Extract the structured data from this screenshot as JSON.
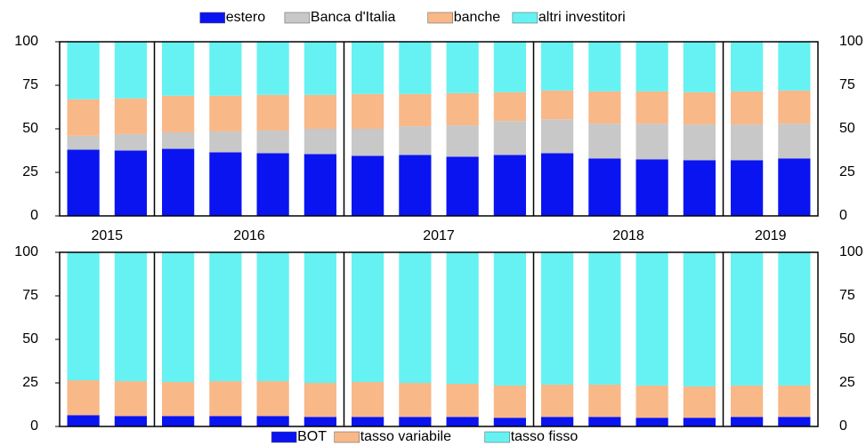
{
  "chart_data": [
    {
      "type": "stacked-bar",
      "categories": [
        "2015",
        null,
        "2016",
        null,
        null,
        null,
        "2017",
        null,
        null,
        null,
        "2018",
        null,
        null,
        null,
        "2019",
        null
      ],
      "series": [
        {
          "name": "estero",
          "color": "#0a14f0",
          "values": [
            38,
            37.5,
            38.5,
            36.5,
            36,
            35.5,
            34.5,
            35,
            34,
            35,
            36,
            33,
            32.5,
            32,
            32,
            33
          ]
        },
        {
          "name": "Banca d'Italia",
          "color": "#c8c8c8",
          "values": [
            8,
            9.5,
            9.5,
            12,
            13,
            14.5,
            15.5,
            16.5,
            18,
            19.5,
            19.5,
            20,
            20.5,
            20.5,
            20.5,
            20
          ]
        },
        {
          "name": "banche",
          "color": "#f8b888",
          "values": [
            21,
            20.5,
            21,
            20.5,
            20.5,
            19.5,
            20,
            18.5,
            18.5,
            16.5,
            16.5,
            18.5,
            18.5,
            18.5,
            19,
            19
          ]
        },
        {
          "name": "altri investitori",
          "color": "#66f2f2",
          "values": [
            33,
            32.5,
            31,
            31,
            30.5,
            30.5,
            30,
            30,
            29.5,
            29,
            28,
            28.5,
            28.5,
            29,
            28.5,
            28
          ]
        }
      ],
      "ylim": [
        0,
        100
      ],
      "yticks": [
        0,
        25,
        50,
        75,
        100
      ],
      "legend": "top"
    },
    {
      "type": "stacked-bar",
      "series": [
        {
          "name": "BOT",
          "color": "#0a14f0",
          "values": [
            6.5,
            6,
            6,
            6,
            6,
            5.5,
            5.5,
            5.5,
            5.5,
            5,
            5.5,
            5.5,
            5,
            5,
            5.5,
            5.5
          ]
        },
        {
          "name": "tasso variabile",
          "color": "#f8b888",
          "values": [
            20,
            20,
            19.5,
            20,
            20,
            19.5,
            20,
            19.5,
            19,
            18.5,
            18.5,
            18.5,
            18.5,
            18,
            18,
            18
          ]
        },
        {
          "name": "tasso fisso",
          "color": "#66f2f2",
          "values": [
            73.5,
            74,
            74.5,
            74,
            74,
            75,
            74.5,
            75,
            75.5,
            76.5,
            76,
            76,
            76.5,
            77,
            76.5,
            76.5
          ]
        }
      ],
      "ylim": [
        0,
        100
      ],
      "yticks": [
        0,
        25,
        50,
        75,
        100
      ],
      "legend": "bottom"
    }
  ]
}
